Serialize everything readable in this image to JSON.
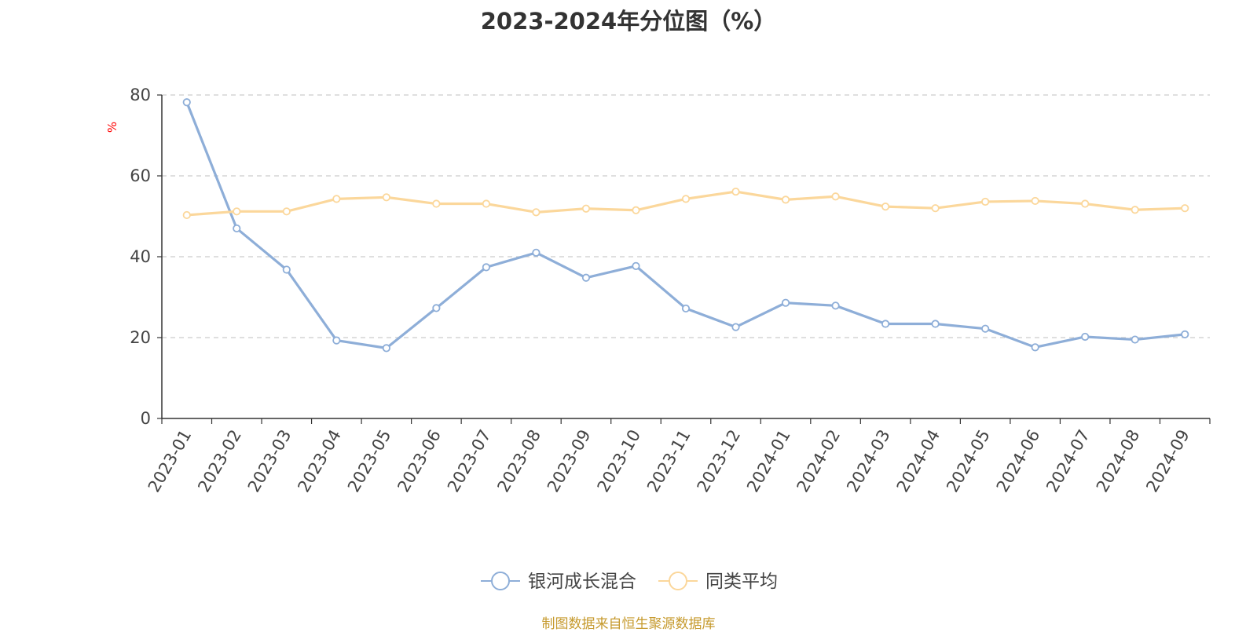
{
  "chart_data": {
    "type": "line",
    "title": "2023-2024年分位图（%）",
    "ylabel": "%",
    "xlabel": "",
    "ylim": [
      0,
      80
    ],
    "yticks": [
      0,
      20,
      40,
      60,
      80
    ],
    "grid": true,
    "legend_position": "bottom",
    "categories": [
      "2023-01",
      "2023-02",
      "2023-03",
      "2023-04",
      "2023-05",
      "2023-06",
      "2023-07",
      "2023-08",
      "2023-09",
      "2023-10",
      "2023-11",
      "2023-12",
      "2024-01",
      "2024-02",
      "2024-03",
      "2024-04",
      "2024-05",
      "2024-06",
      "2024-07",
      "2024-08",
      "2024-09"
    ],
    "series": [
      {
        "name": "银河成长混合",
        "color": "#8eaed8",
        "values": [
          78.2,
          47.0,
          36.8,
          19.3,
          17.4,
          27.3,
          37.4,
          41.0,
          34.8,
          37.7,
          27.2,
          22.6,
          28.6,
          27.9,
          23.4,
          23.4,
          22.2,
          17.6,
          20.2,
          19.5,
          20.8
        ]
      },
      {
        "name": "同类平均",
        "color": "#fbd79b",
        "values": [
          50.3,
          51.2,
          51.2,
          54.3,
          54.7,
          53.1,
          53.1,
          51.0,
          51.9,
          51.5,
          54.3,
          56.1,
          54.1,
          54.9,
          52.4,
          52.0,
          53.6,
          53.8,
          53.1,
          51.6,
          52.0
        ]
      }
    ]
  },
  "source_note": "制图数据来自恒生聚源数据库"
}
